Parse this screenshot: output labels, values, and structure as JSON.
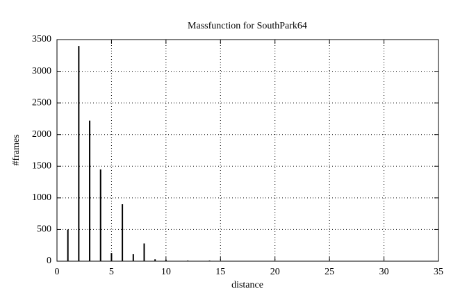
{
  "chart_data": {
    "type": "stem",
    "title": "Massfunction for SouthPark64",
    "x_label": "distance",
    "y_label": "#frames",
    "x": [
      1,
      2,
      3,
      4,
      5,
      6,
      7,
      8,
      9,
      10,
      12,
      14
    ],
    "series": [
      {
        "color": "#000000",
        "values": [
          500,
          3400,
          2220,
          1450,
          130,
          900,
          110,
          280,
          30,
          20,
          10,
          10
        ]
      }
    ],
    "xlim": [
      0,
      35
    ],
    "xticks": [
      0,
      5,
      10,
      15,
      20,
      25,
      30,
      35
    ],
    "ylim": [
      0,
      3500
    ],
    "yticks": [
      0,
      500,
      1000,
      1500,
      2000,
      2500,
      3000,
      3500
    ],
    "grid": true
  }
}
